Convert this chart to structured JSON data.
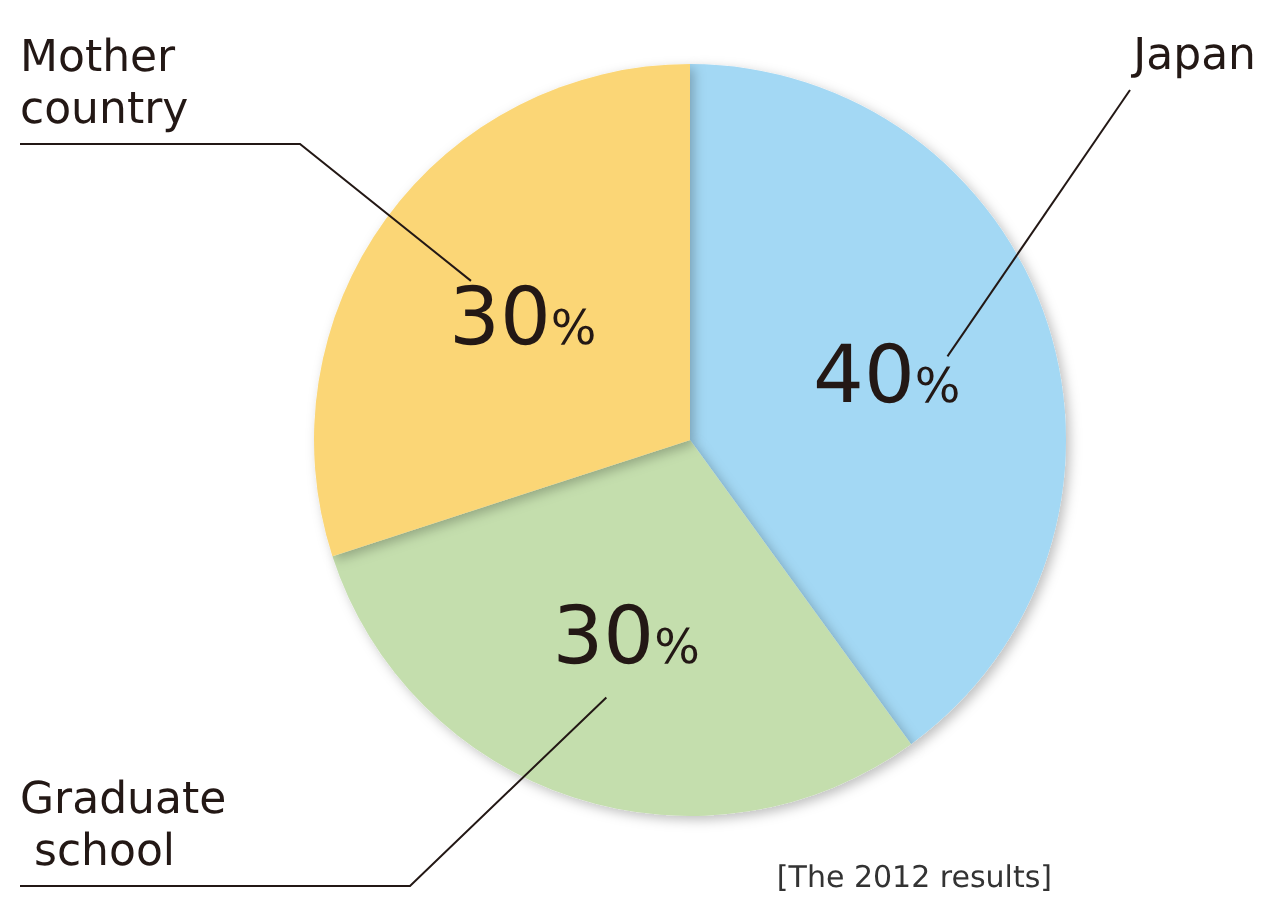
{
  "chart_data": {
    "type": "pie",
    "categories": [
      "Japan",
      "Graduate school",
      "Mother country"
    ],
    "values": [
      40,
      30,
      30
    ],
    "value_labels": [
      "40%",
      "30%",
      "30%"
    ],
    "colors": [
      "#a3d8f4",
      "#c4dead",
      "#fbd676"
    ],
    "annotations": [
      "[The 2012 results]"
    ]
  }
}
